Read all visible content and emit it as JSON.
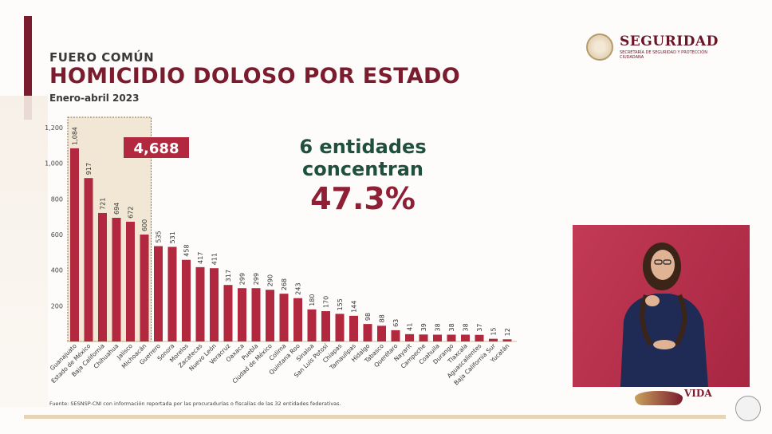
{
  "header": {
    "kicker": "FUERO COMÚN",
    "title": "HOMICIDIO DOLOSO POR ESTADO",
    "period": "Enero-abril 2023"
  },
  "logo": {
    "name": "SEGURIDAD",
    "subtitle": "SECRETARÍA DE SEGURIDAD Y PROTECCIÓN CIUDADANA"
  },
  "callout": {
    "line1": "6 entidades",
    "line2": "concentran",
    "percent": "47.3%"
  },
  "highlight": {
    "total_label": "4,688"
  },
  "source": "Fuente: SESNSP-CNI con información reportada por las procuradurías o fiscalías de las 32 entidades federativas.",
  "footer_logo": {
    "text": "VIDA"
  },
  "colors": {
    "bar": "#b1283f",
    "highlight_fill": "#e9d6b6",
    "highlight_border": "#8a6a3d",
    "title": "#7b1c2e",
    "callout_green": "#1f4f3e",
    "callout_red": "#8e1f35"
  },
  "chart_data": {
    "type": "bar",
    "title": "HOMICIDIO DOLOSO POR ESTADO",
    "ylim": [
      0,
      1200
    ],
    "yticks": [
      "1,200",
      "1,000",
      "800",
      "600",
      "400",
      "200"
    ],
    "ytick_values": [
      1200,
      1000,
      800,
      600,
      400,
      200
    ],
    "categories": [
      "Guanajuato",
      "Estado de México",
      "Baja California",
      "Chihuahua",
      "Jalisco",
      "Michoacán",
      "Guerrero",
      "Sonora",
      "Morelos",
      "Zacatecas",
      "Nuevo León",
      "Veracruz",
      "Oaxaca",
      "Puebla",
      "Ciudad de México",
      "Colima",
      "Quintana Roo",
      "Sinaloa",
      "San Luis Potosí",
      "Chiapas",
      "Tamaulipas",
      "Hidalgo",
      "Tabasco",
      "Querétaro",
      "Nayarit",
      "Campeche",
      "Coahuila",
      "Durango",
      "Tlaxcala",
      "Aguascalientes",
      "Baja California Sur",
      "Yucatán"
    ],
    "values": [
      1084,
      917,
      721,
      694,
      672,
      600,
      535,
      531,
      458,
      417,
      411,
      317,
      299,
      299,
      290,
      268,
      243,
      180,
      170,
      155,
      144,
      98,
      88,
      63,
      41,
      39,
      38,
      38,
      38,
      37,
      15,
      12
    ],
    "value_labels": [
      "1,084",
      "917",
      "721",
      "694",
      "672",
      "600",
      "535",
      "531",
      "458",
      "417",
      "411",
      "317",
      "299",
      "299",
      "290",
      "268",
      "243",
      "180",
      "170",
      "155",
      "144",
      "98",
      "88",
      "63",
      "41",
      "39",
      "38",
      "38",
      "38",
      "37",
      "15",
      "12"
    ],
    "highlighted_count": 6,
    "grid": false
  }
}
